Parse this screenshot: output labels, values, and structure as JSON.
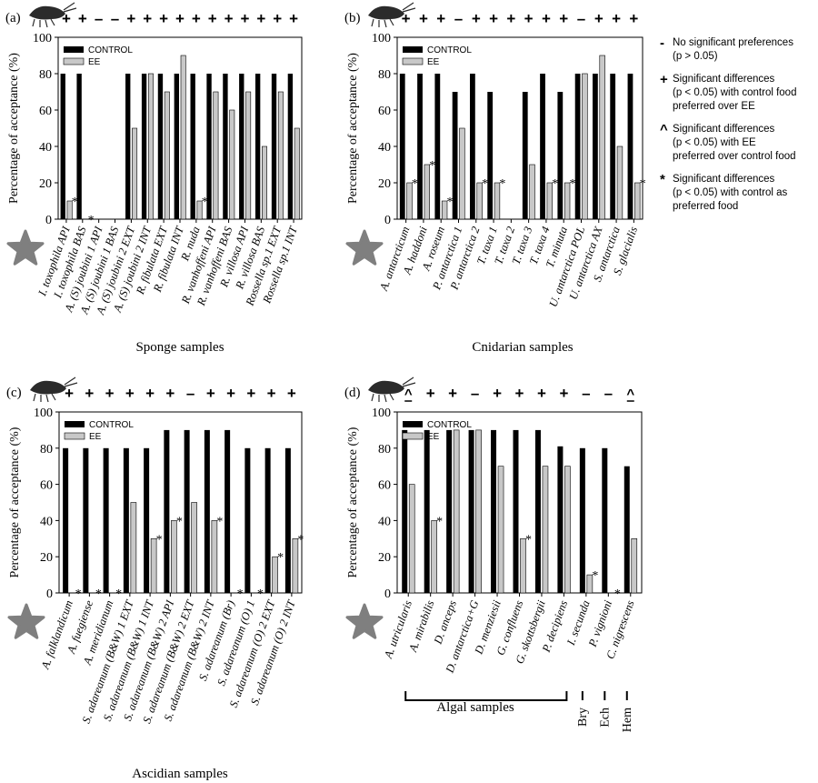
{
  "legend_side": [
    {
      "symbol": "-",
      "name": "no-significant-preferences",
      "lines": [
        "No significant preferences",
        "(p > 0.05)"
      ]
    },
    {
      "symbol": "+",
      "name": "control-preferred",
      "lines": [
        "Significant differences",
        "(p < 0.05) with control food",
        "preferred over EE"
      ]
    },
    {
      "symbol": "^",
      "name": "ee-preferred",
      "lines": [
        "Significant differences",
        "(p < 0.05) with EE",
        "preferred over control food"
      ]
    },
    {
      "symbol": "*",
      "name": "control-as-preferred",
      "lines": [
        "Significant differences",
        "(p < 0.05) with control as",
        "preferred food"
      ]
    }
  ],
  "colors": {
    "control": "#000000",
    "ee": "#c8c8c8",
    "star": "#7f7f7f",
    "amphipod": "#2b2b2b"
  },
  "chart_data": [
    {
      "type": "bar",
      "panel_label": "(a)",
      "ylabel": "Percentage of acceptance (%)",
      "xlabel": "Sponge samples",
      "ylim": [
        0,
        100
      ],
      "yticks": [
        0,
        20,
        40,
        60,
        80,
        100
      ],
      "legend": [
        "CONTROL",
        "EE"
      ],
      "categories": [
        "I. toxophila API",
        "I. toxophila BAS",
        "A. (S) joubini 1 API",
        "A. (S) joubini 1 BAS",
        "A. (S) joubini 2 EXT",
        "A. (S) joubini 2 INT",
        "R. fibulata EXT",
        "R. fibulata INT",
        "R. nuda",
        "R. vanhoffeni API",
        "R. vanhoffeni BAS",
        "R. villosa API",
        "R. villosa BAS",
        "Rossella sp.1 EXT",
        "Rossella sp.1 INT"
      ],
      "series": [
        {
          "name": "CONTROL",
          "values": [
            80,
            80,
            0,
            0,
            80,
            80,
            80,
            80,
            80,
            80,
            80,
            80,
            80,
            80,
            80
          ]
        },
        {
          "name": "EE",
          "values": [
            10,
            0,
            0,
            0,
            50,
            80,
            70,
            90,
            10,
            70,
            60,
            70,
            40,
            70,
            50
          ]
        }
      ],
      "significance_top": [
        "+",
        "+",
        "-",
        "-",
        "+",
        "+",
        "+",
        "+",
        "+",
        "+",
        "+",
        "+",
        "+",
        "+",
        "+"
      ],
      "asterisks": [
        true,
        true,
        false,
        false,
        false,
        false,
        false,
        false,
        true,
        false,
        false,
        false,
        false,
        false,
        false
      ]
    },
    {
      "type": "bar",
      "panel_label": "(b)",
      "ylabel": "Percentage of acceptance (%)",
      "xlabel": "Cnidarian samples",
      "ylim": [
        0,
        100
      ],
      "yticks": [
        0,
        20,
        40,
        60,
        80,
        100
      ],
      "legend": [
        "CONTROL",
        "EE"
      ],
      "categories": [
        "A. antarcticum",
        "A. haddoni",
        "A. roseum",
        "P. antarctica 1",
        "P. antarctica 2",
        "T. taxa 1",
        "T. taxa 2",
        "T. taxa 3",
        "T. taxa 4",
        "T. minuta",
        "U. antarctica POL",
        "U. antarctica AX",
        "S. antarctica",
        "S. glacialis"
      ],
      "series": [
        {
          "name": "CONTROL",
          "values": [
            80,
            80,
            80,
            70,
            80,
            70,
            0,
            70,
            80,
            70,
            80,
            80,
            80,
            80
          ]
        },
        {
          "name": "EE",
          "values": [
            20,
            30,
            10,
            50,
            20,
            20,
            0,
            30,
            20,
            20,
            80,
            90,
            40,
            20
          ]
        }
      ],
      "significance_top": [
        "+",
        "+",
        "+",
        "-",
        "+",
        "+",
        "+",
        "+",
        "+",
        "+",
        "-",
        "+",
        "+",
        "+"
      ],
      "asterisks": [
        true,
        true,
        true,
        false,
        true,
        true,
        false,
        false,
        true,
        true,
        false,
        false,
        false,
        true
      ]
    },
    {
      "type": "bar",
      "panel_label": "(c)",
      "ylabel": "Percentage of acceptance (%)",
      "xlabel": "Ascidian samples",
      "ylim": [
        0,
        100
      ],
      "yticks": [
        0,
        20,
        40,
        60,
        80,
        100
      ],
      "legend": [
        "CONTROL",
        "EE"
      ],
      "categories": [
        "A. falklandicum",
        "A. fuegiense",
        "A. meridianum",
        "S. adareanum (B&W) 1 EXT",
        "S. adareanum (B&W) 1 INT",
        "S. adareanum (B&W) 2 API",
        "S. adareanum (B&W) 2 EXT",
        "S. adareanum (B&W) 2 INT",
        "S. adareanum (Br)",
        "S. adareanum (O) 1",
        "S. adareanum (O) 2 EXT",
        "S. adareanum (O) 2 INT"
      ],
      "series": [
        {
          "name": "CONTROL",
          "values": [
            80,
            80,
            80,
            80,
            80,
            90,
            90,
            90,
            90,
            80,
            80,
            80
          ]
        },
        {
          "name": "EE",
          "values": [
            0,
            0,
            0,
            50,
            30,
            40,
            50,
            40,
            0,
            0,
            20,
            30
          ]
        }
      ],
      "significance_top": [
        "+",
        "+",
        "+",
        "+",
        "+",
        "+",
        "-",
        "+",
        "+",
        "+",
        "+",
        "+"
      ],
      "asterisks": [
        true,
        true,
        true,
        false,
        true,
        true,
        false,
        true,
        true,
        true,
        true,
        true
      ]
    },
    {
      "type": "bar",
      "panel_label": "(d)",
      "ylabel": "Percentage of acceptance (%)",
      "xlabel": "Algal samples",
      "ylim": [
        0,
        100
      ],
      "yticks": [
        0,
        20,
        40,
        60,
        80,
        100
      ],
      "legend": [
        "CONTROL",
        "EE"
      ],
      "categories": [
        "A. utricularis",
        "A. mirabilis",
        "D. anceps",
        "D. antarctica+G",
        "D. menziesii",
        "G. confluens",
        "G. skottsbergii",
        "P. decipiens",
        "I. secunda",
        "P. vignioni",
        "C. nigrescens"
      ],
      "series": [
        {
          "name": "CONTROL",
          "values": [
            90,
            90,
            90,
            90,
            90,
            90,
            90,
            81,
            80,
            80,
            70
          ]
        },
        {
          "name": "EE",
          "values": [
            60,
            40,
            90,
            90,
            70,
            30,
            70,
            70,
            10,
            0,
            30
          ]
        }
      ],
      "significance_top": [
        "^",
        "+",
        "+",
        "-",
        "+",
        "+",
        "+",
        "+",
        "-",
        "-",
        "^"
      ],
      "asterisks": [
        false,
        true,
        false,
        false,
        false,
        true,
        false,
        false,
        true,
        true,
        false
      ],
      "group_labels": [
        "Algal samples",
        "Bry",
        "Ech",
        "Hem"
      ]
    }
  ]
}
